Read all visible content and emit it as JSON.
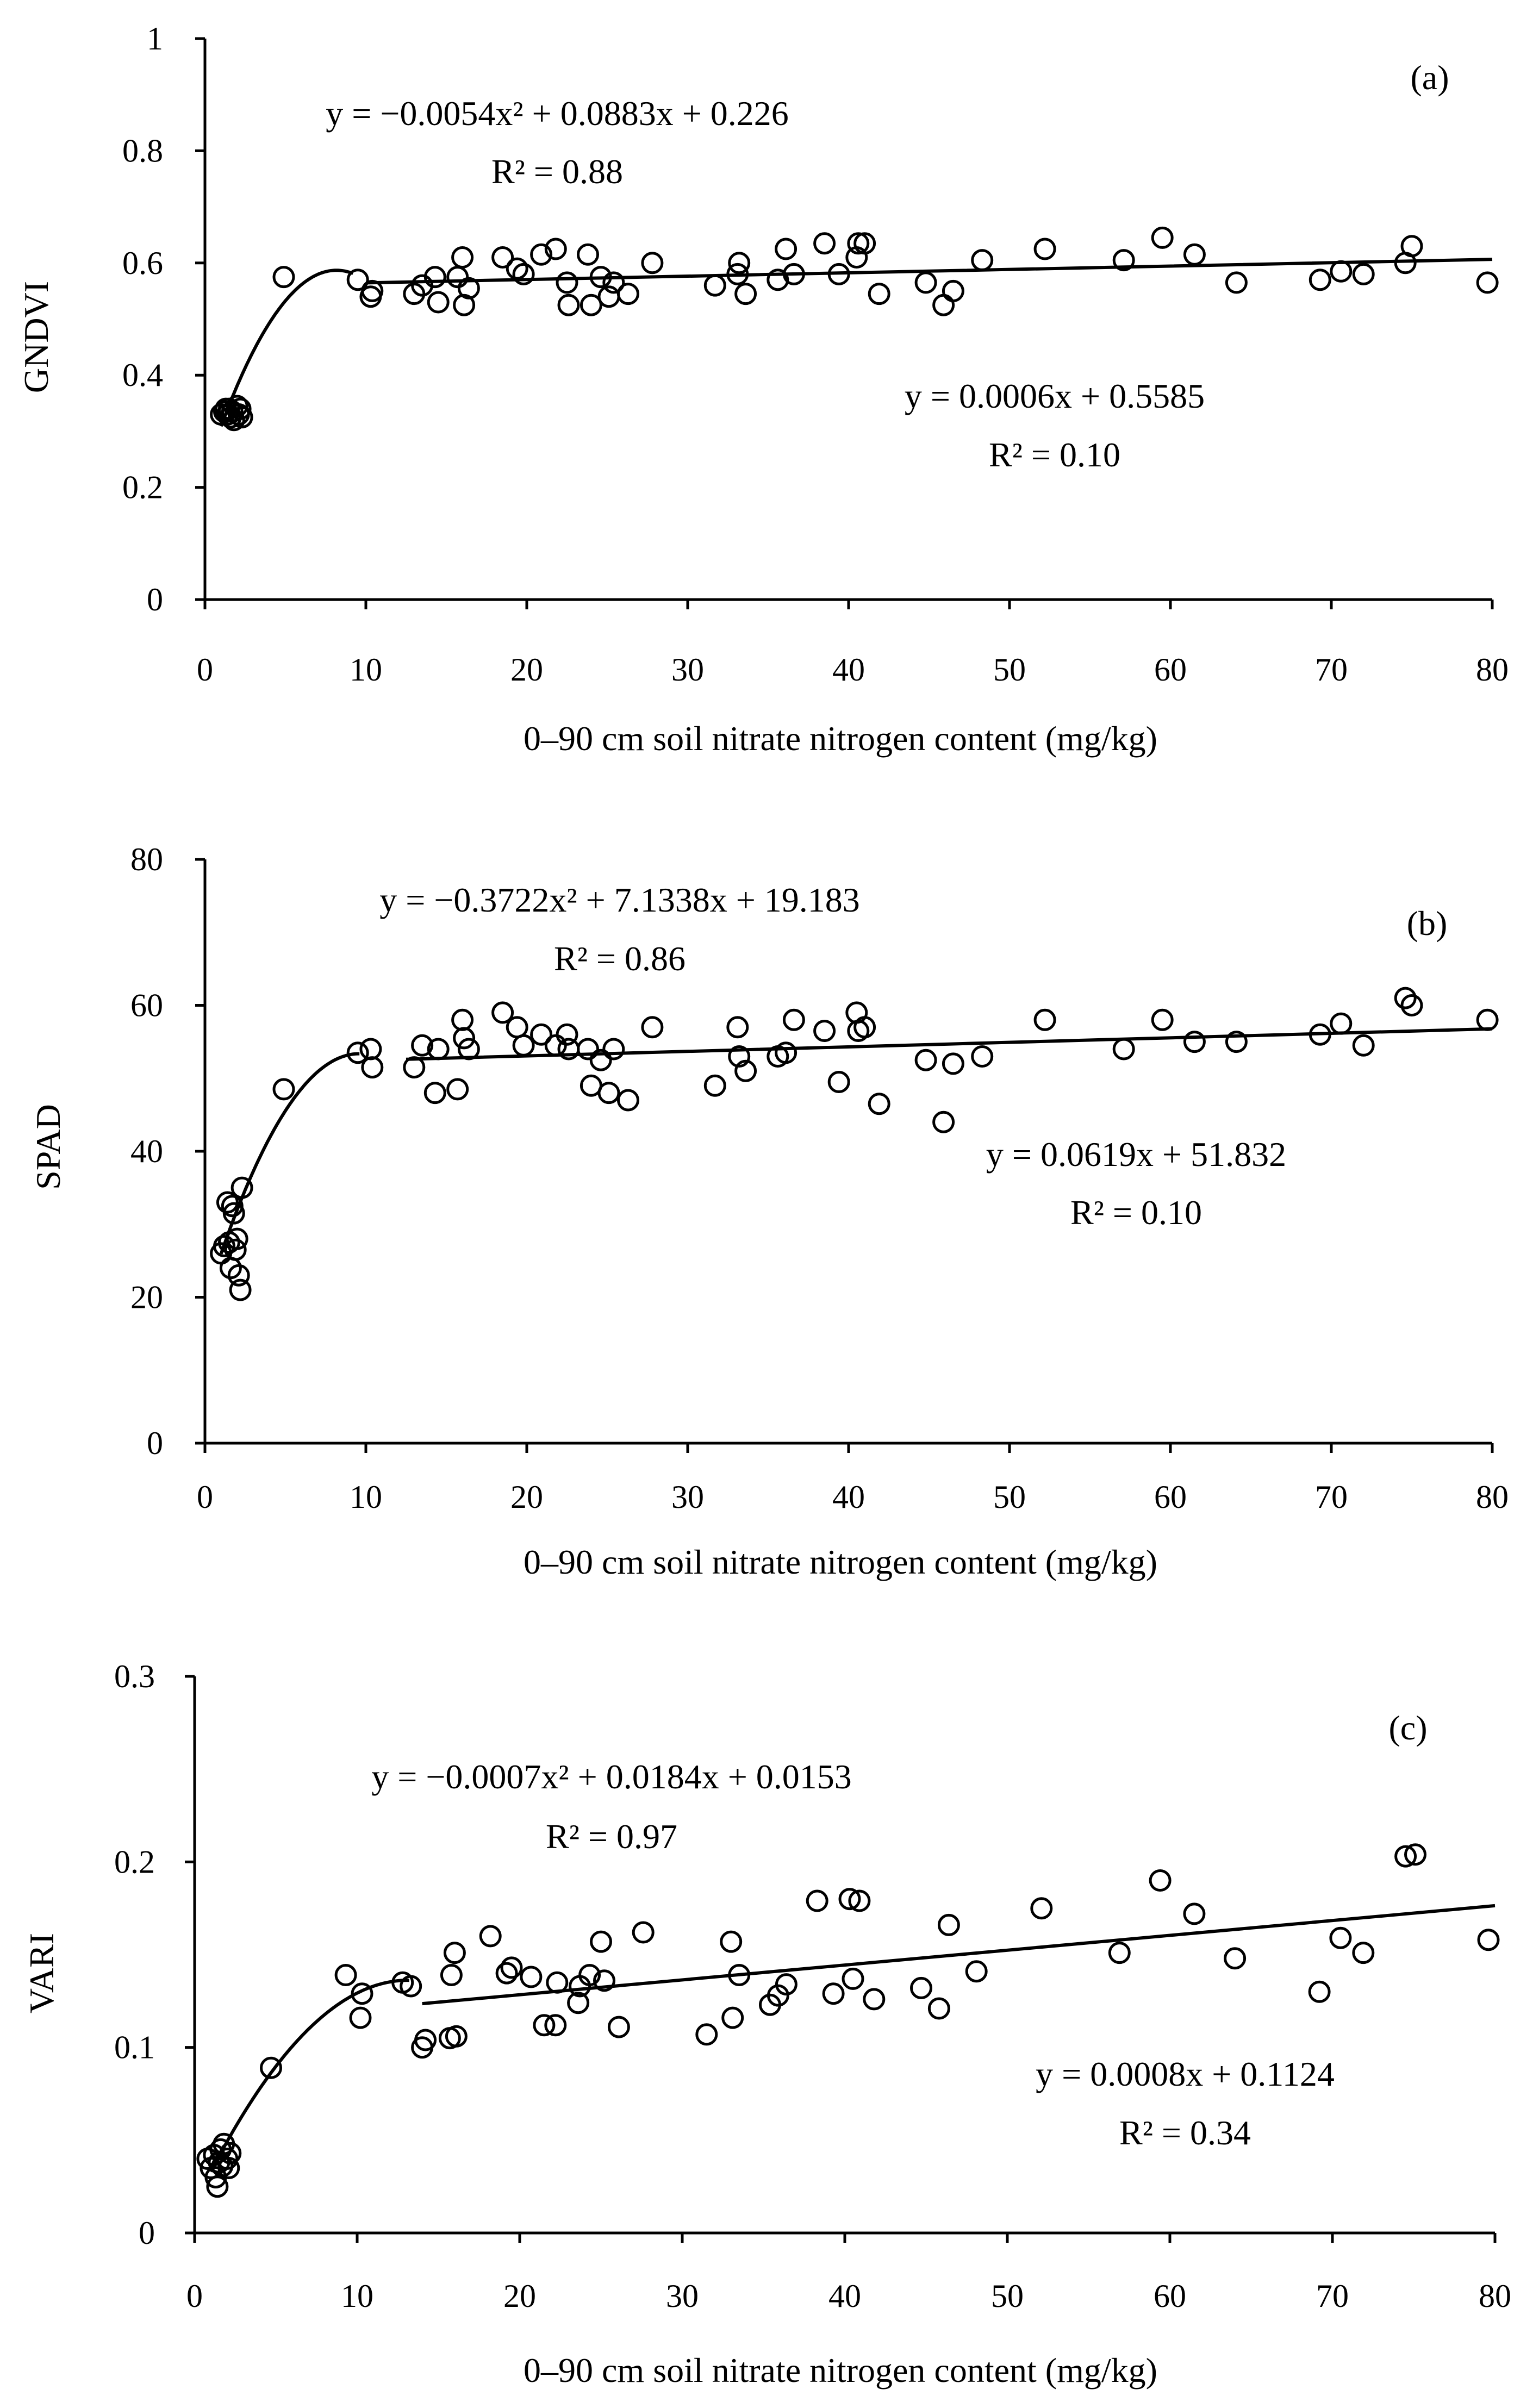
{
  "chart_data": [
    {
      "type": "scatter",
      "panel_label": "(a)",
      "ylabel": "GNDVI",
      "xlabel": "0–90 cm soil nitrate nitrogen content (mg/kg)",
      "xlim": [
        0,
        80
      ],
      "ylim": [
        0,
        1
      ],
      "xticks": [
        0,
        10,
        20,
        30,
        40,
        50,
        60,
        70,
        80
      ],
      "yticks": [
        0,
        0.2,
        0.4,
        0.6,
        0.8,
        1
      ],
      "ytick_labels": [
        "0",
        "0.2",
        "0.4",
        "0.6",
        "0.8",
        "1"
      ],
      "grid": false,
      "points": [
        [
          1.0,
          0.33
        ],
        [
          1.2,
          0.335
        ],
        [
          1.4,
          0.33
        ],
        [
          1.5,
          0.34
        ],
        [
          1.6,
          0.325
        ],
        [
          1.7,
          0.335
        ],
        [
          1.8,
          0.32
        ],
        [
          2.0,
          0.345
        ],
        [
          2.1,
          0.33
        ],
        [
          2.2,
          0.34
        ],
        [
          2.3,
          0.325
        ],
        [
          1.3,
          0.34
        ],
        [
          4.9,
          0.575
        ],
        [
          9.5,
          0.57
        ],
        [
          10.3,
          0.54
        ],
        [
          10.4,
          0.55
        ],
        [
          13.0,
          0.545
        ],
        [
          13.5,
          0.56
        ],
        [
          14.3,
          0.575
        ],
        [
          14.5,
          0.53
        ],
        [
          15.7,
          0.575
        ],
        [
          16.0,
          0.61
        ],
        [
          16.1,
          0.525
        ],
        [
          16.4,
          0.555
        ],
        [
          18.5,
          0.61
        ],
        [
          19.4,
          0.59
        ],
        [
          19.8,
          0.58
        ],
        [
          20.9,
          0.615
        ],
        [
          21.8,
          0.625
        ],
        [
          22.5,
          0.565
        ],
        [
          22.6,
          0.525
        ],
        [
          23.8,
          0.615
        ],
        [
          24.0,
          0.525
        ],
        [
          24.6,
          0.575
        ],
        [
          25.1,
          0.54
        ],
        [
          25.4,
          0.565
        ],
        [
          26.3,
          0.545
        ],
        [
          27.8,
          0.6
        ],
        [
          31.7,
          0.56
        ],
        [
          33.1,
          0.58
        ],
        [
          33.2,
          0.6
        ],
        [
          33.6,
          0.545
        ],
        [
          35.6,
          0.57
        ],
        [
          36.1,
          0.625
        ],
        [
          36.6,
          0.58
        ],
        [
          38.5,
          0.635
        ],
        [
          39.4,
          0.58
        ],
        [
          40.5,
          0.61
        ],
        [
          40.6,
          0.635
        ],
        [
          41.0,
          0.635
        ],
        [
          41.9,
          0.545
        ],
        [
          44.8,
          0.565
        ],
        [
          45.9,
          0.525
        ],
        [
          46.5,
          0.55
        ],
        [
          48.3,
          0.605
        ],
        [
          52.2,
          0.625
        ],
        [
          57.1,
          0.605
        ],
        [
          59.5,
          0.645
        ],
        [
          61.5,
          0.615
        ],
        [
          64.1,
          0.565
        ],
        [
          69.3,
          0.57
        ],
        [
          70.6,
          0.585
        ],
        [
          72.0,
          0.58
        ],
        [
          74.6,
          0.6
        ],
        [
          75.0,
          0.63
        ],
        [
          79.7,
          0.565
        ]
      ],
      "fits": [
        {
          "kind": "poly2",
          "coef": [
            -0.0054,
            0.0883,
            0.226
          ],
          "x_range": [
            1.0,
            9.2
          ],
          "equation": "y = −0.0054x² + 0.0883x + 0.226",
          "r2": "R² = 0.88"
        },
        {
          "kind": "linear",
          "coef": [
            0.0006,
            0.5585
          ],
          "x_range": [
            10.0,
            80.0
          ],
          "equation": "y = 0.0006x + 0.5585",
          "r2": "R² = 0.10"
        }
      ]
    },
    {
      "type": "scatter",
      "panel_label": "(b)",
      "ylabel": "SPAD",
      "xlabel": "0–90 cm soil nitrate nitrogen content (mg/kg)",
      "xlim": [
        0,
        80
      ],
      "ylim": [
        0,
        80
      ],
      "xticks": [
        0,
        10,
        20,
        30,
        40,
        50,
        60,
        70,
        80
      ],
      "yticks": [
        0,
        20,
        40,
        60,
        80
      ],
      "ytick_labels": [
        "0",
        "20",
        "40",
        "60",
        "80"
      ],
      "grid": false,
      "points": [
        [
          1.0,
          26.0
        ],
        [
          1.2,
          27.0
        ],
        [
          1.4,
          33.0
        ],
        [
          1.5,
          27.5
        ],
        [
          1.6,
          24.0
        ],
        [
          1.7,
          32.5
        ],
        [
          1.8,
          31.5
        ],
        [
          2.0,
          28.0
        ],
        [
          2.1,
          23.0
        ],
        [
          2.2,
          21.0
        ],
        [
          2.3,
          35.0
        ],
        [
          1.9,
          26.5
        ],
        [
          4.9,
          48.5
        ],
        [
          9.5,
          53.5
        ],
        [
          10.3,
          54.0
        ],
        [
          10.4,
          51.5
        ],
        [
          13.0,
          51.5
        ],
        [
          13.5,
          54.5
        ],
        [
          14.3,
          48.0
        ],
        [
          14.5,
          54.0
        ],
        [
          15.7,
          48.5
        ],
        [
          16.0,
          58.0
        ],
        [
          16.1,
          55.5
        ],
        [
          16.4,
          54.0
        ],
        [
          18.5,
          59.0
        ],
        [
          19.4,
          57.0
        ],
        [
          19.8,
          54.5
        ],
        [
          20.9,
          56.0
        ],
        [
          21.8,
          54.5
        ],
        [
          22.5,
          56.0
        ],
        [
          22.6,
          54.0
        ],
        [
          23.8,
          54.0
        ],
        [
          24.0,
          49.0
        ],
        [
          24.6,
          52.5
        ],
        [
          25.1,
          48.0
        ],
        [
          25.4,
          54.0
        ],
        [
          26.3,
          47.0
        ],
        [
          27.8,
          57.0
        ],
        [
          31.7,
          49.0
        ],
        [
          33.1,
          57.0
        ],
        [
          33.2,
          53.0
        ],
        [
          33.6,
          51.0
        ],
        [
          35.6,
          53.0
        ],
        [
          36.1,
          53.5
        ],
        [
          36.6,
          58.0
        ],
        [
          38.5,
          56.5
        ],
        [
          39.4,
          49.5
        ],
        [
          40.5,
          59.0
        ],
        [
          40.6,
          56.5
        ],
        [
          41.0,
          57.0
        ],
        [
          41.9,
          46.5
        ],
        [
          44.8,
          52.5
        ],
        [
          45.9,
          44.0
        ],
        [
          46.5,
          52.0
        ],
        [
          48.3,
          53.0
        ],
        [
          52.2,
          58.0
        ],
        [
          57.1,
          54.0
        ],
        [
          59.5,
          58.0
        ],
        [
          61.5,
          55.0
        ],
        [
          64.1,
          55.0
        ],
        [
          69.3,
          56.0
        ],
        [
          70.6,
          57.5
        ],
        [
          72.0,
          54.5
        ],
        [
          74.6,
          61.0
        ],
        [
          75.0,
          60.0
        ],
        [
          79.7,
          58.0
        ]
      ],
      "fits": [
        {
          "kind": "poly2",
          "coef": [
            -0.3722,
            7.1338,
            19.183
          ],
          "x_range": [
            1.0,
            9.6
          ],
          "equation": "y = −0.3722x² + 7.1338x + 19.183",
          "r2": "R² = 0.86"
        },
        {
          "kind": "linear",
          "coef": [
            0.0619,
            51.832
          ],
          "x_range": [
            12.5,
            80.0
          ],
          "equation": "y = 0.0619x + 51.832",
          "r2": "R² = 0.10"
        }
      ]
    },
    {
      "type": "scatter",
      "panel_label": "(c)",
      "ylabel": "VARI",
      "xlabel": "0–90 cm soil nitrate nitrogen content (mg/kg)",
      "xlim": [
        0,
        80
      ],
      "ylim": [
        0,
        0.3
      ],
      "xticks": [
        0,
        10,
        20,
        30,
        40,
        50,
        60,
        70,
        80
      ],
      "yticks": [
        0,
        0.1,
        0.2,
        0.3
      ],
      "ytick_labels": [
        "0",
        "0.1",
        "0.2",
        "0.3"
      ],
      "grid": false,
      "points": [
        [
          0.8,
          0.04
        ],
        [
          1.0,
          0.035
        ],
        [
          1.2,
          0.042
        ],
        [
          1.3,
          0.03
        ],
        [
          1.4,
          0.025
        ],
        [
          1.5,
          0.038
        ],
        [
          1.6,
          0.045
        ],
        [
          1.7,
          0.036
        ],
        [
          1.8,
          0.048
        ],
        [
          2.0,
          0.04
        ],
        [
          2.1,
          0.035
        ],
        [
          2.2,
          0.043
        ],
        [
          4.7,
          0.089
        ],
        [
          9.3,
          0.139
        ],
        [
          10.2,
          0.116
        ],
        [
          10.3,
          0.129
        ],
        [
          12.8,
          0.135
        ],
        [
          13.3,
          0.133
        ],
        [
          14.0,
          0.1
        ],
        [
          14.2,
          0.104
        ],
        [
          15.7,
          0.105
        ],
        [
          15.8,
          0.139
        ],
        [
          16.0,
          0.151
        ],
        [
          16.1,
          0.106
        ],
        [
          18.2,
          0.16
        ],
        [
          19.2,
          0.14
        ],
        [
          19.5,
          0.143
        ],
        [
          20.7,
          0.138
        ],
        [
          21.5,
          0.112
        ],
        [
          22.2,
          0.112
        ],
        [
          22.3,
          0.135
        ],
        [
          23.6,
          0.124
        ],
        [
          23.7,
          0.133
        ],
        [
          24.3,
          0.139
        ],
        [
          25.0,
          0.157
        ],
        [
          25.2,
          0.136
        ],
        [
          26.1,
          0.111
        ],
        [
          27.6,
          0.162
        ],
        [
          31.5,
          0.107
        ],
        [
          33.0,
          0.157
        ],
        [
          33.1,
          0.116
        ],
        [
          33.5,
          0.139
        ],
        [
          35.4,
          0.123
        ],
        [
          35.9,
          0.128
        ],
        [
          36.4,
          0.134
        ],
        [
          38.3,
          0.179
        ],
        [
          39.3,
          0.129
        ],
        [
          40.3,
          0.18
        ],
        [
          40.5,
          0.137
        ],
        [
          40.9,
          0.179
        ],
        [
          41.8,
          0.126
        ],
        [
          44.7,
          0.132
        ],
        [
          45.8,
          0.121
        ],
        [
          46.4,
          0.166
        ],
        [
          48.1,
          0.141
        ],
        [
          52.1,
          0.175
        ],
        [
          56.9,
          0.151
        ],
        [
          59.4,
          0.19
        ],
        [
          61.5,
          0.172
        ],
        [
          64.0,
          0.148
        ],
        [
          69.2,
          0.13
        ],
        [
          70.5,
          0.159
        ],
        [
          71.9,
          0.151
        ],
        [
          74.5,
          0.203
        ],
        [
          75.1,
          0.204
        ],
        [
          79.6,
          0.158
        ]
      ],
      "fits": [
        {
          "kind": "poly2",
          "coef": [
            -0.0007,
            0.0184,
            0.0153
          ],
          "x_range": [
            1.0,
            13.2
          ],
          "equation": "y = −0.0007x² + 0.0184x + 0.0153",
          "r2": "R² = 0.97"
        },
        {
          "kind": "linear",
          "coef": [
            0.0008,
            0.1124
          ],
          "x_range": [
            14.0,
            80.0
          ],
          "equation": "y = 0.0008x + 0.1124",
          "r2": "R² = 0.34"
        }
      ]
    }
  ]
}
